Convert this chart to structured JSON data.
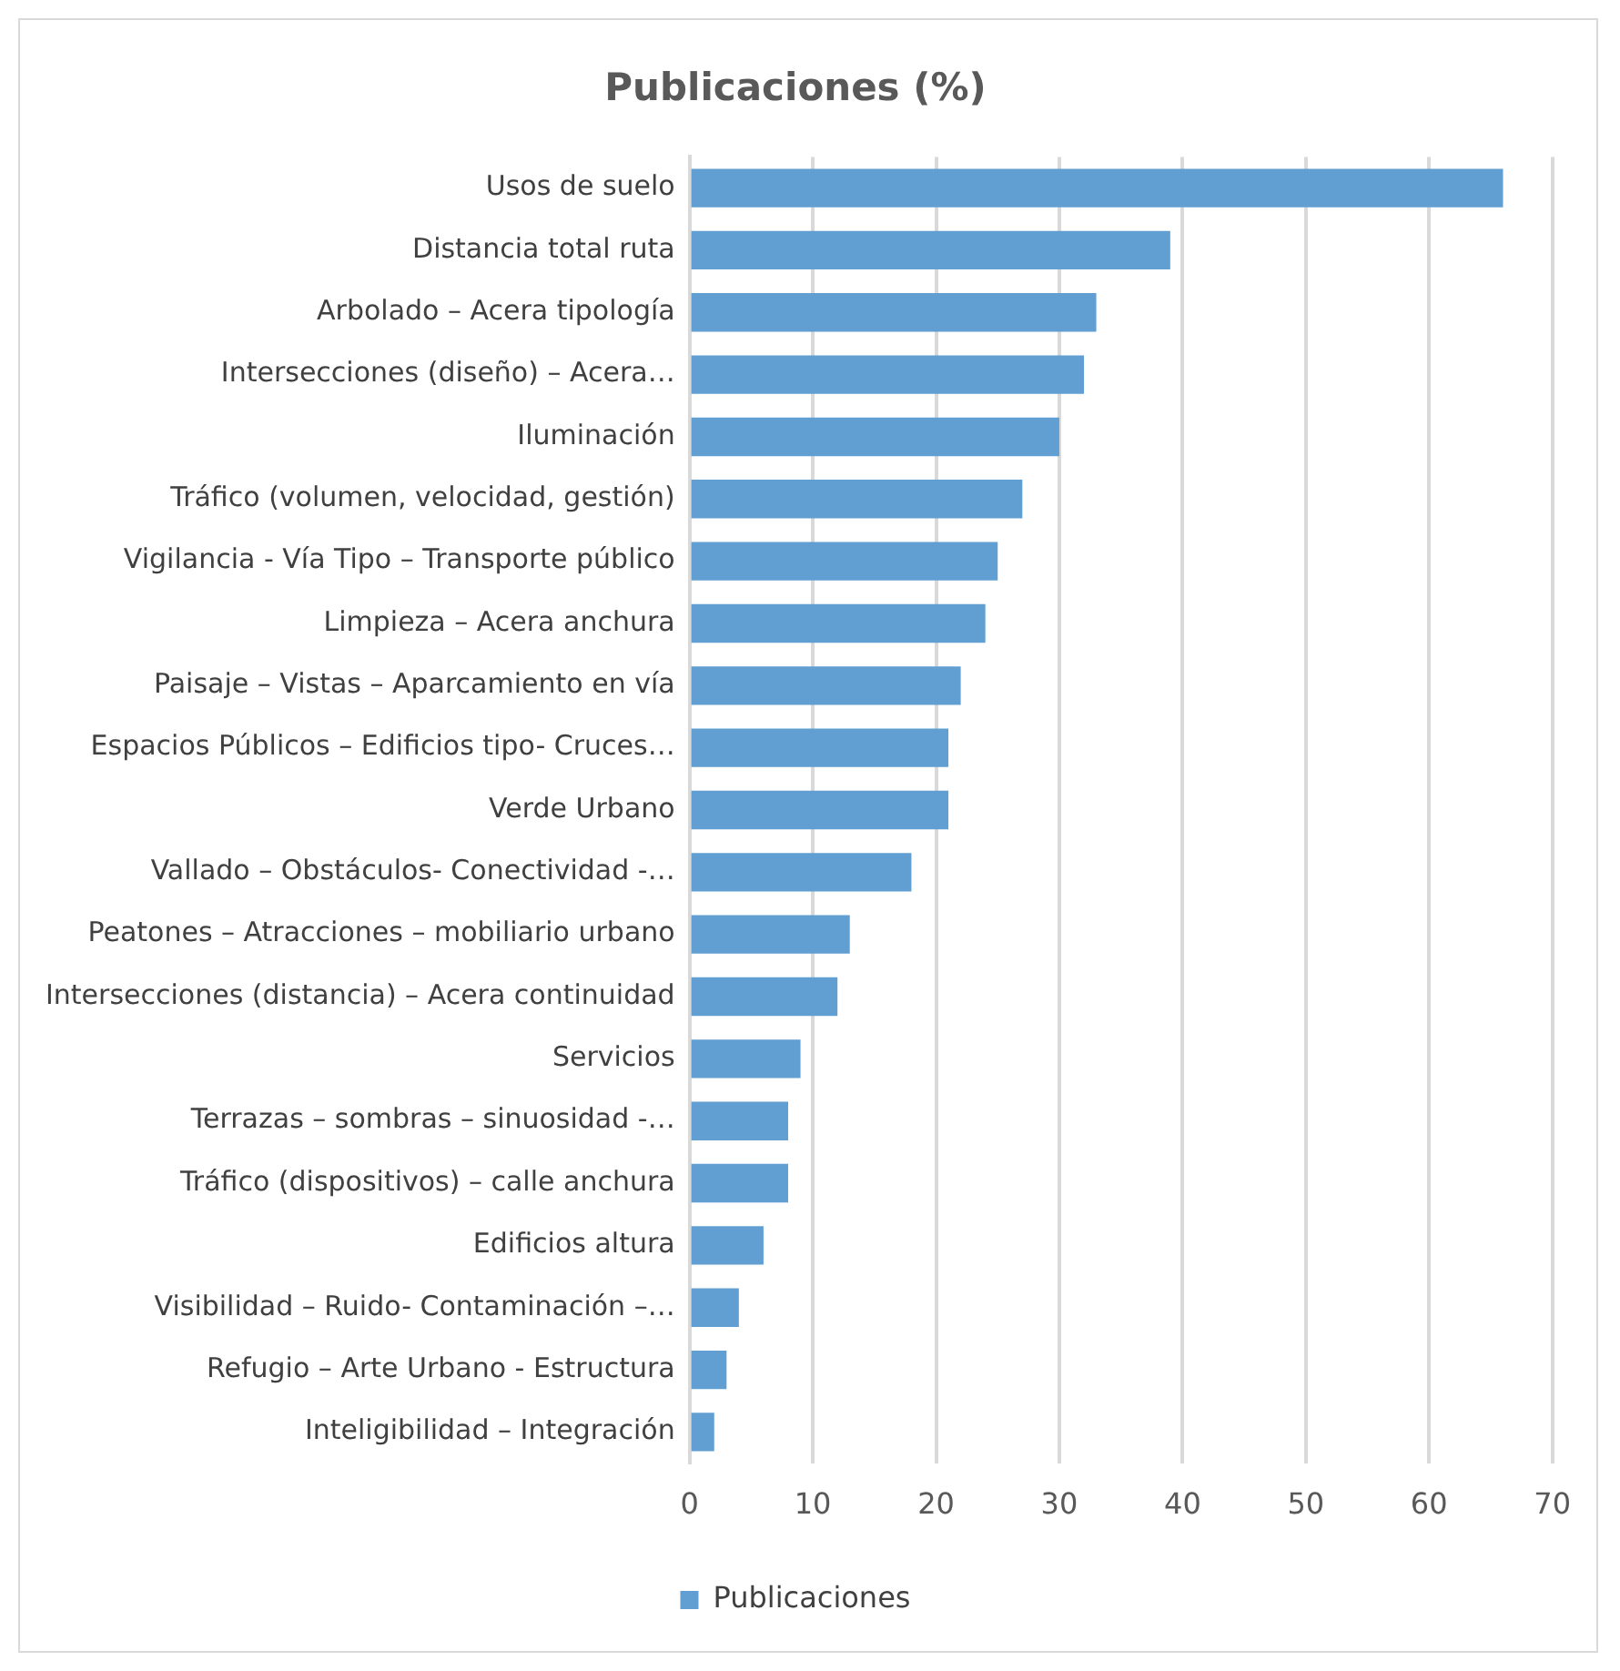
{
  "chart_data": {
    "type": "bar",
    "orientation": "horizontal",
    "title": "Publicaciones (%)",
    "categories": [
      "Usos de suelo",
      "Distancia total ruta",
      "Arbolado – Acera tipología",
      "Intersecciones (diseño) – Acera…",
      "Iluminación",
      "Tráfico (volumen, velocidad, gestión)",
      "Vigilancia - Vía Tipo – Transporte público",
      "Limpieza – Acera anchura",
      "Paisaje – Vistas – Aparcamiento en vía",
      "Espacios Públicos – Edificios tipo- Cruces…",
      "Verde Urbano",
      "Vallado – Obstáculos- Conectividad -…",
      "Peatones – Atracciones – mobiliario urbano",
      "Intersecciones (distancia) – Acera continuidad",
      "Servicios",
      "Terrazas – sombras – sinuosidad -…",
      "Tráfico (dispositivos) – calle anchura",
      "Edificios altura",
      "Visibilidad – Ruido- Contaminación –…",
      "Refugio – Arte Urbano - Estructura",
      "Inteligibilidad – Integración"
    ],
    "series": [
      {
        "name": "Publicaciones",
        "color": "#619fd3",
        "values": [
          66,
          39,
          33,
          32,
          30,
          27,
          25,
          24,
          22,
          21,
          21,
          18,
          13,
          12,
          9,
          8,
          8,
          6,
          4,
          3,
          2
        ]
      }
    ],
    "xlim": [
      0,
      70
    ],
    "xticks": [
      0,
      10,
      20,
      30,
      40,
      50,
      60,
      70
    ],
    "grid": "x",
    "legend": "bottom"
  }
}
